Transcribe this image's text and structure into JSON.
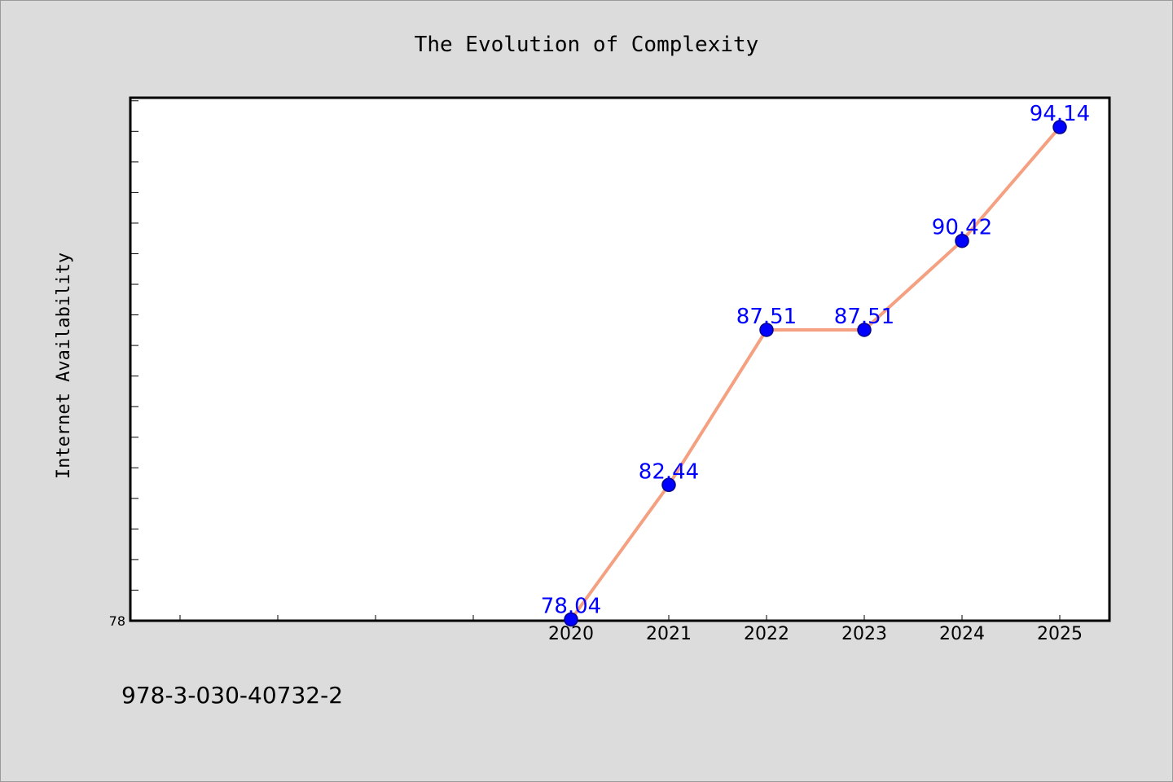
{
  "chart_data": {
    "type": "line",
    "title": "The Evolution of Complexity",
    "xlabel": "",
    "ylabel": "Internet Availability",
    "x": [
      "2020",
      "2021",
      "2022",
      "2023",
      "2024",
      "2025"
    ],
    "x_tick_labels": [
      "2020",
      "2021",
      "2022",
      "2023",
      "2024",
      "2025"
    ],
    "y_tick_labels": [
      "78"
    ],
    "values": [
      78.04,
      82.44,
      87.51,
      87.51,
      90.42,
      94.14
    ],
    "data_labels": [
      "78.04",
      "82.44",
      "87.51",
      "87.51",
      "90.42",
      "94.14"
    ],
    "ylim": [
      78.0,
      95.1
    ],
    "grid": false,
    "legend": "none",
    "colors": {
      "line": "#f4a081",
      "marker": "#0000ff",
      "marker_edge": "#00008b",
      "data_label": "#0000ff",
      "plot_background": "#ffffff",
      "figure_background": "#dcdcdc"
    }
  },
  "footer": {
    "isbn": "978-3-030-40732-2"
  }
}
